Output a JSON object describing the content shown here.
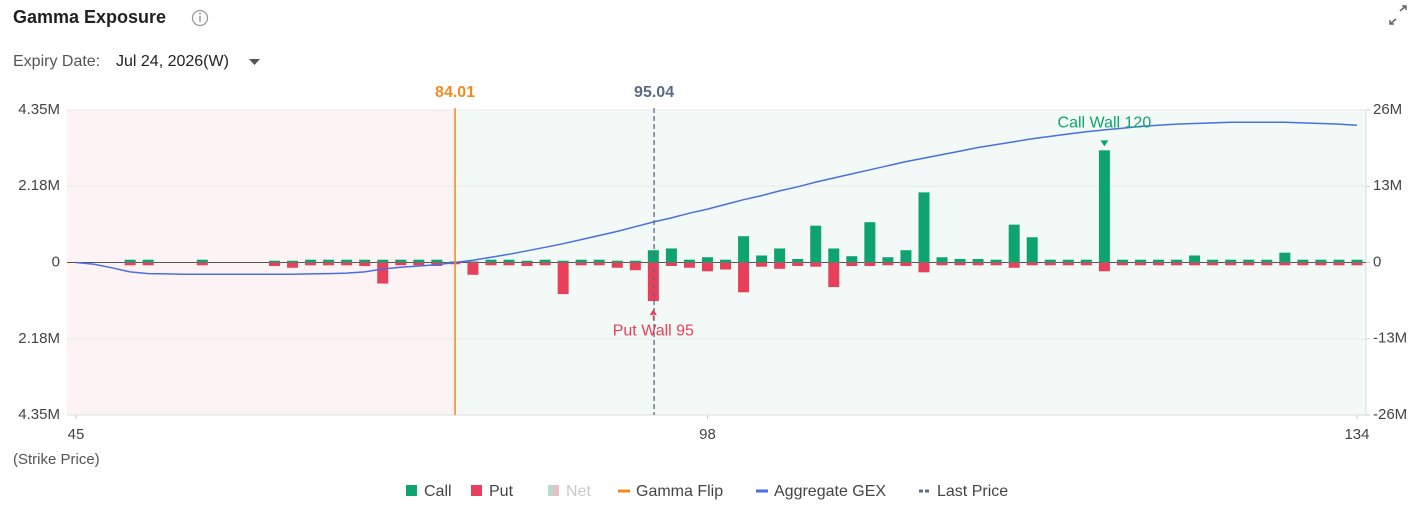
{
  "header": {
    "title": "Gamma Exposure",
    "expiry_label": "Expiry Date:",
    "expiry_value": "Jul 24, 2026(W)"
  },
  "chart_data": {
    "type": "bar",
    "x_label": "(Strike Price)",
    "categories": [
      45,
      55,
      60,
      66,
      67,
      68,
      69,
      70,
      71,
      72,
      73,
      74,
      75,
      76,
      77,
      78,
      79,
      80,
      81,
      82,
      83,
      84,
      85,
      86,
      87,
      88,
      89,
      90,
      91,
      92,
      93,
      94,
      95,
      96,
      97,
      98,
      99,
      100,
      101,
      102,
      103,
      104,
      105,
      106,
      107,
      108,
      109,
      110,
      111,
      112,
      113,
      114,
      115,
      116,
      117,
      118,
      119,
      120,
      121,
      122,
      123,
      124,
      125,
      126,
      127,
      128,
      129,
      130,
      131,
      132,
      133,
      134
    ],
    "xticks": [
      45,
      98,
      134
    ],
    "ylim": [
      -4.35,
      4.35
    ],
    "yticks": [
      {
        "value": 4.35,
        "label": "4.35M"
      },
      {
        "value": 2.18,
        "label": "2.18M"
      },
      0,
      {
        "value": -2.18,
        "label": "2.18M"
      },
      {
        "value": -4.35,
        "label": "4.35M"
      }
    ],
    "y2lim": [
      -26,
      26
    ],
    "y2ticks": [
      {
        "value": 26,
        "label": "26M"
      },
      {
        "value": 13,
        "label": "13M"
      },
      0,
      {
        "value": -13,
        "label": "-13M"
      },
      {
        "value": -26,
        "label": "-26M"
      }
    ],
    "grid": true,
    "series": [
      {
        "name": "Call",
        "color": "#0fa46f",
        "values": [
          0,
          0,
          0,
          0.08,
          0.08,
          0,
          0,
          0.08,
          0,
          0,
          0,
          0.05,
          0.05,
          0.08,
          0.08,
          0.08,
          0.08,
          0.08,
          0.08,
          0.08,
          0.08,
          0.03,
          0.03,
          0.08,
          0.08,
          0.05,
          0.08,
          0.05,
          0.08,
          0.08,
          0.05,
          0.05,
          0.35,
          0.4,
          0.08,
          0.15,
          0.08,
          0.75,
          0.2,
          0.4,
          0.1,
          1.05,
          0.4,
          0.18,
          1.15,
          0.15,
          0.35,
          2.0,
          0.15,
          0.1,
          0.1,
          0.08,
          1.08,
          0.72,
          0.08,
          0.08,
          0.08,
          3.2,
          0.08,
          0.08,
          0.08,
          0.08,
          0.2,
          0.08,
          0.08,
          0.08,
          0.08,
          0.28,
          0.08,
          0.08,
          0.08,
          0.08
        ]
      },
      {
        "name": "Put",
        "color": "#e8405a",
        "values": [
          0,
          0,
          0,
          -0.08,
          -0.08,
          0,
          0,
          -0.08,
          0,
          0,
          0,
          -0.1,
          -0.15,
          -0.08,
          -0.08,
          -0.08,
          -0.1,
          -0.6,
          -0.08,
          -0.08,
          -0.1,
          -0.05,
          -0.35,
          -0.08,
          -0.08,
          -0.1,
          -0.08,
          -0.9,
          -0.08,
          -0.08,
          -0.15,
          -0.22,
          -1.1,
          -0.1,
          -0.15,
          -0.25,
          -0.2,
          -0.85,
          -0.12,
          -0.18,
          -0.1,
          -0.12,
          -0.7,
          -0.1,
          -0.1,
          -0.08,
          -0.1,
          -0.28,
          -0.08,
          -0.08,
          -0.08,
          -0.08,
          -0.15,
          -0.08,
          -0.08,
          -0.08,
          -0.08,
          -0.25,
          -0.08,
          -0.08,
          -0.08,
          -0.08,
          -0.08,
          -0.08,
          -0.08,
          -0.08,
          -0.08,
          -0.08,
          -0.08,
          -0.08,
          -0.08,
          -0.08
        ]
      },
      {
        "name": "Aggregate GEX",
        "type": "line",
        "axis": "y2",
        "color": "#4a6fe3",
        "values": [
          0,
          -0.3,
          -0.9,
          -1.6,
          -1.9,
          -1.95,
          -2.0,
          -2.0,
          -2.0,
          -2.0,
          -2.0,
          -2.0,
          -2.0,
          -1.95,
          -1.9,
          -1.8,
          -1.6,
          -1.1,
          -0.8,
          -0.6,
          -0.4,
          0,
          0.4,
          0.9,
          1.4,
          2.0,
          2.6,
          3.2,
          3.9,
          4.6,
          5.3,
          6.1,
          6.9,
          7.6,
          8.4,
          9.1,
          9.9,
          10.7,
          11.4,
          12.2,
          12.9,
          13.7,
          14.4,
          15.1,
          15.8,
          16.5,
          17.2,
          17.8,
          18.4,
          19.0,
          19.6,
          20.1,
          20.6,
          21.1,
          21.5,
          21.9,
          22.3,
          22.6,
          22.9,
          23.2,
          23.4,
          23.6,
          23.7,
          23.8,
          23.9,
          23.9,
          23.9,
          23.9,
          23.8,
          23.7,
          23.6,
          23.4
        ]
      }
    ],
    "net": {
      "name": "Net",
      "color": "#9e9e9e",
      "hidden": true
    },
    "gamma_flip": {
      "name": "Gamma Flip",
      "value": 84.01,
      "color": "#f28a22"
    },
    "last_price": {
      "name": "Last Price",
      "value": 95.04,
      "color": "#5b6b85"
    },
    "call_wall": {
      "label": "Call Wall 120",
      "strike": 120,
      "color": "#0fa46f"
    },
    "put_wall": {
      "label": "Put Wall 95",
      "strike": 95,
      "color": "#e8405a"
    }
  }
}
